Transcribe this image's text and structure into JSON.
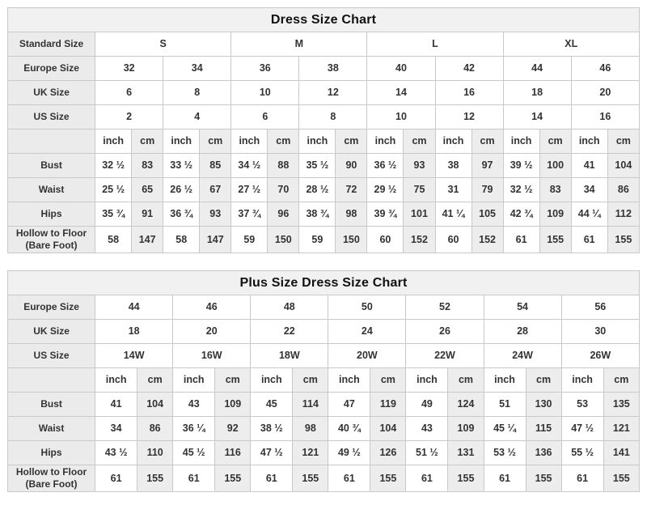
{
  "colors": {
    "border": "#c9c9c9",
    "title_background": "#f1f1f1",
    "label_column_background": "#ebebeb",
    "cm_column_background": "#ededed",
    "text": "#333333",
    "page_background": "#ffffff"
  },
  "chart_data": [
    {
      "type": "table",
      "title": "Dress Size Chart",
      "pairs": 8,
      "unit_labels": [
        "inch",
        "cm"
      ],
      "rows": [
        {
          "type": "span",
          "label": "Standard Size",
          "colspan": 4,
          "values": [
            "S",
            "M",
            "L",
            "XL"
          ]
        },
        {
          "type": "span",
          "label": "Europe Size",
          "colspan": 2,
          "values": [
            "32",
            "34",
            "36",
            "38",
            "40",
            "42",
            "44",
            "46"
          ]
        },
        {
          "type": "span",
          "label": "UK Size",
          "colspan": 2,
          "values": [
            "6",
            "8",
            "10",
            "12",
            "14",
            "16",
            "18",
            "20"
          ]
        },
        {
          "type": "span",
          "label": "US Size",
          "colspan": 2,
          "values": [
            "2",
            "4",
            "6",
            "8",
            "10",
            "12",
            "14",
            "16"
          ]
        },
        {
          "type": "units",
          "label": "",
          "values": [
            "inch",
            "cm",
            "inch",
            "cm",
            "inch",
            "cm",
            "inch",
            "cm",
            "inch",
            "cm",
            "inch",
            "cm",
            "inch",
            "cm",
            "inch",
            "cm"
          ]
        },
        {
          "type": "measure",
          "label": "Bust",
          "values": [
            "32 ½",
            "83",
            "33 ½",
            "85",
            "34 ½",
            "88",
            "35 ½",
            "90",
            "36 ½",
            "93",
            "38",
            "97",
            "39 ½",
            "100",
            "41",
            "104"
          ]
        },
        {
          "type": "measure",
          "label": "Waist",
          "values": [
            "25 ½",
            "65",
            "26 ½",
            "67",
            "27 ½",
            "70",
            "28 ½",
            "72",
            "29 ½",
            "75",
            "31",
            "79",
            "32 ½",
            "83",
            "34",
            "86"
          ]
        },
        {
          "type": "measure",
          "label": "Hips",
          "values": [
            "35 ¾",
            "91",
            "36 ¾",
            "93",
            "37 ¾",
            "96",
            "38 ¾",
            "98",
            "39 ¾",
            "101",
            "41 ¼",
            "105",
            "42 ¾",
            "109",
            "44 ¼",
            "112"
          ]
        },
        {
          "type": "measure",
          "label": "Hollow to Floor (Bare Foot)",
          "values": [
            "58",
            "147",
            "58",
            "147",
            "59",
            "150",
            "59",
            "150",
            "60",
            "152",
            "60",
            "152",
            "61",
            "155",
            "61",
            "155"
          ]
        }
      ]
    },
    {
      "type": "table",
      "title": "Plus Size Dress Size Chart",
      "pairs": 7,
      "unit_labels": [
        "inch",
        "cm"
      ],
      "rows": [
        {
          "type": "span",
          "label": "Europe Size",
          "colspan": 2,
          "values": [
            "44",
            "46",
            "48",
            "50",
            "52",
            "54",
            "56"
          ]
        },
        {
          "type": "span",
          "label": "UK Size",
          "colspan": 2,
          "values": [
            "18",
            "20",
            "22",
            "24",
            "26",
            "28",
            "30"
          ]
        },
        {
          "type": "span",
          "label": "US Size",
          "colspan": 2,
          "values": [
            "14W",
            "16W",
            "18W",
            "20W",
            "22W",
            "24W",
            "26W"
          ]
        },
        {
          "type": "units",
          "label": "",
          "values": [
            "inch",
            "cm",
            "inch",
            "cm",
            "inch",
            "cm",
            "inch",
            "cm",
            "inch",
            "cm",
            "inch",
            "cm",
            "inch",
            "cm"
          ]
        },
        {
          "type": "measure",
          "label": "Bust",
          "values": [
            "41",
            "104",
            "43",
            "109",
            "45",
            "114",
            "47",
            "119",
            "49",
            "124",
            "51",
            "130",
            "53",
            "135"
          ]
        },
        {
          "type": "measure",
          "label": "Waist",
          "values": [
            "34",
            "86",
            "36 ¼",
            "92",
            "38 ½",
            "98",
            "40 ¾",
            "104",
            "43",
            "109",
            "45 ¼",
            "115",
            "47 ½",
            "121"
          ]
        },
        {
          "type": "measure",
          "label": "Hips",
          "values": [
            "43 ½",
            "110",
            "45 ½",
            "116",
            "47 ½",
            "121",
            "49 ½",
            "126",
            "51 ½",
            "131",
            "53 ½",
            "136",
            "55 ½",
            "141"
          ]
        },
        {
          "type": "measure",
          "label": "Hollow to Floor (Bare Foot)",
          "values": [
            "61",
            "155",
            "61",
            "155",
            "61",
            "155",
            "61",
            "155",
            "61",
            "155",
            "61",
            "155",
            "61",
            "155"
          ]
        }
      ]
    }
  ]
}
